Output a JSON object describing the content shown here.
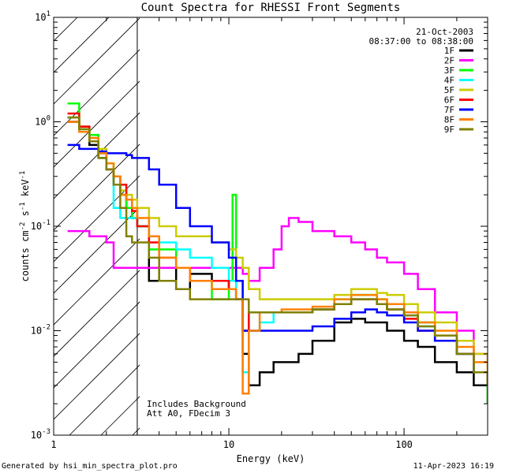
{
  "chart_data": {
    "type": "line",
    "title": "Count Spectra for RHESSI Front Segments",
    "xlabel": "Energy (keV)",
    "ylabel": "counts cm-2 s-1 keV-1",
    "x_scale": "log",
    "y_scale": "log",
    "xlim": [
      1,
      300
    ],
    "ylim": [
      0.001,
      10
    ],
    "x_ticks": [
      {
        "value": 1,
        "label": "1"
      },
      {
        "value": 10,
        "label": "10"
      },
      {
        "value": 100,
        "label": "100"
      }
    ],
    "y_ticks": [
      {
        "value": 10,
        "label": "10",
        "exp": "1"
      },
      {
        "value": 1,
        "label": "10",
        "exp": "0"
      },
      {
        "value": 0.1,
        "label": "10",
        "exp": "-1"
      },
      {
        "value": 0.01,
        "label": "10",
        "exp": "-2"
      },
      {
        "value": 0.001,
        "label": "10",
        "exp": "-3"
      }
    ],
    "date": "21-Oct-2003",
    "time_range": "08:37:00 to 08:38:00",
    "hatched_region_xmax": 3,
    "annotations": [
      "Includes Background",
      "Att A0, FDecim 3"
    ],
    "series": [
      {
        "name": "1F",
        "color": "#000000",
        "x": [
          1.2,
          1.4,
          1.6,
          1.8,
          2.0,
          2.2,
          2.4,
          2.6,
          2.8,
          3.0,
          3.5,
          4.0,
          5.0,
          6.0,
          8.0,
          10,
          11,
          12,
          13,
          15,
          18,
          20,
          25,
          30,
          40,
          50,
          60,
          70,
          80,
          100,
          120,
          150,
          200,
          250,
          300
        ],
        "y": [
          1.0,
          0.9,
          0.6,
          0.45,
          0.35,
          0.25,
          0.2,
          0.15,
          0.12,
          0.1,
          0.03,
          0.04,
          0.025,
          0.035,
          0.03,
          0.025,
          0.02,
          0.006,
          0.003,
          0.004,
          0.005,
          0.005,
          0.006,
          0.008,
          0.012,
          0.013,
          0.012,
          0.012,
          0.01,
          0.008,
          0.007,
          0.005,
          0.004,
          0.003,
          0.002
        ]
      },
      {
        "name": "2F",
        "color": "#ff00ff",
        "x": [
          1.2,
          1.4,
          1.6,
          1.8,
          2.0,
          2.2,
          2.4,
          2.6,
          2.8,
          3.0,
          3.5,
          4.0,
          5.0,
          6.0,
          8.0,
          10,
          11,
          12,
          13,
          15,
          18,
          20,
          22,
          25,
          30,
          40,
          50,
          60,
          70,
          80,
          100,
          120,
          150,
          200,
          250,
          300
        ],
        "y": [
          0.09,
          0.09,
          0.08,
          0.08,
          0.07,
          0.04,
          0.04,
          0.04,
          0.04,
          0.04,
          0.04,
          0.04,
          0.04,
          0.04,
          0.04,
          0.04,
          0.04,
          0.035,
          0.03,
          0.04,
          0.06,
          0.1,
          0.12,
          0.11,
          0.09,
          0.08,
          0.07,
          0.06,
          0.05,
          0.045,
          0.035,
          0.025,
          0.015,
          0.01,
          0.006,
          0.005
        ]
      },
      {
        "name": "3F",
        "color": "#00ff00",
        "x": [
          1.2,
          1.4,
          1.6,
          1.8,
          2.0,
          2.2,
          2.4,
          2.6,
          2.8,
          3.0,
          3.5,
          4.0,
          5.0,
          6.0,
          8.0,
          10,
          10.5,
          11,
          12,
          13,
          15,
          18,
          20,
          25,
          30,
          40,
          50,
          60,
          70,
          80,
          100,
          120,
          150,
          200,
          250,
          300
        ],
        "y": [
          1.5,
          0.85,
          0.75,
          0.5,
          0.4,
          0.3,
          0.2,
          0.15,
          0.12,
          0.1,
          0.06,
          0.06,
          0.04,
          0.03,
          0.02,
          0.03,
          0.2,
          0.03,
          0.01,
          0.015,
          0.015,
          0.015,
          0.015,
          0.015,
          0.016,
          0.02,
          0.022,
          0.022,
          0.02,
          0.018,
          0.015,
          0.012,
          0.008,
          0.006,
          0.004,
          0.002
        ]
      },
      {
        "name": "4F",
        "color": "#00ffff",
        "x": [
          1.2,
          1.4,
          1.6,
          1.8,
          2.0,
          2.2,
          2.4,
          2.6,
          2.8,
          3.0,
          3.5,
          4.0,
          5.0,
          6.0,
          8.0,
          10,
          11,
          12,
          13,
          15,
          18,
          20,
          25,
          30,
          40,
          50,
          60,
          70,
          80,
          100,
          120,
          150,
          200,
          250,
          300
        ],
        "y": [
          1.1,
          0.85,
          0.65,
          0.5,
          0.4,
          0.15,
          0.12,
          0.12,
          0.12,
          0.1,
          0.08,
          0.07,
          0.06,
          0.05,
          0.04,
          0.03,
          0.02,
          0.004,
          0.01,
          0.012,
          0.015,
          0.015,
          0.015,
          0.016,
          0.018,
          0.02,
          0.02,
          0.018,
          0.016,
          0.014,
          0.011,
          0.008,
          0.006,
          0.004,
          0.003
        ]
      },
      {
        "name": "5F",
        "color": "#cccc00",
        "x": [
          1.2,
          1.4,
          1.6,
          1.8,
          2.0,
          2.2,
          2.4,
          2.6,
          2.8,
          3.0,
          3.5,
          4.0,
          5.0,
          6.0,
          8.0,
          10,
          11,
          12,
          13,
          15,
          18,
          20,
          25,
          30,
          40,
          50,
          60,
          70,
          80,
          100,
          120,
          150,
          200,
          250,
          300
        ],
        "y": [
          1.1,
          0.9,
          0.7,
          0.55,
          0.4,
          0.3,
          0.22,
          0.2,
          0.18,
          0.15,
          0.12,
          0.1,
          0.08,
          0.08,
          0.07,
          0.06,
          0.05,
          0.04,
          0.025,
          0.02,
          0.02,
          0.02,
          0.02,
          0.02,
          0.022,
          0.025,
          0.025,
          0.023,
          0.022,
          0.018,
          0.015,
          0.012,
          0.008,
          0.006,
          0.004
        ]
      },
      {
        "name": "6F",
        "color": "#ff0000",
        "x": [
          1.2,
          1.4,
          1.6,
          1.8,
          2.0,
          2.2,
          2.4,
          2.6,
          2.8,
          3.0,
          3.5,
          4.0,
          5.0,
          6.0,
          8.0,
          10,
          11,
          12,
          13,
          15,
          18,
          20,
          25,
          30,
          40,
          50,
          60,
          70,
          80,
          100,
          120,
          150,
          200,
          250,
          300
        ],
        "y": [
          1.2,
          0.9,
          0.65,
          0.5,
          0.35,
          0.3,
          0.25,
          0.18,
          0.14,
          0.1,
          0.07,
          0.05,
          0.04,
          0.03,
          0.03,
          0.025,
          0.02,
          0.01,
          0.015,
          0.015,
          0.015,
          0.015,
          0.015,
          0.016,
          0.018,
          0.02,
          0.02,
          0.018,
          0.016,
          0.013,
          0.01,
          0.008,
          0.006,
          0.004,
          0.003
        ]
      },
      {
        "name": "7F",
        "color": "#0000ff",
        "x": [
          1.2,
          1.4,
          1.6,
          1.8,
          2.0,
          2.2,
          2.4,
          2.6,
          2.8,
          3.0,
          3.5,
          4.0,
          5.0,
          6.0,
          8.0,
          10,
          11,
          12,
          13,
          15,
          18,
          20,
          25,
          30,
          40,
          50,
          60,
          70,
          80,
          100,
          120,
          150,
          200,
          250,
          300
        ],
        "y": [
          0.6,
          0.55,
          0.55,
          0.52,
          0.5,
          0.5,
          0.5,
          0.48,
          0.45,
          0.45,
          0.35,
          0.25,
          0.15,
          0.1,
          0.07,
          0.05,
          0.03,
          0.01,
          0.01,
          0.01,
          0.01,
          0.01,
          0.01,
          0.011,
          0.013,
          0.015,
          0.016,
          0.015,
          0.014,
          0.012,
          0.01,
          0.008,
          0.006,
          0.004,
          0.003
        ]
      },
      {
        "name": "8F",
        "color": "#ff8000",
        "x": [
          1.2,
          1.4,
          1.6,
          1.8,
          2.0,
          2.2,
          2.4,
          2.6,
          2.8,
          3.0,
          3.5,
          4.0,
          5.0,
          6.0,
          8.0,
          10,
          11,
          12,
          13,
          15,
          18,
          20,
          25,
          30,
          40,
          50,
          60,
          70,
          80,
          100,
          120,
          150,
          200,
          250,
          300
        ],
        "y": [
          1.0,
          0.8,
          0.7,
          0.5,
          0.4,
          0.3,
          0.2,
          0.18,
          0.15,
          0.12,
          0.08,
          0.05,
          0.04,
          0.03,
          0.025,
          0.025,
          0.02,
          0.0025,
          0.01,
          0.015,
          0.015,
          0.016,
          0.016,
          0.017,
          0.02,
          0.022,
          0.022,
          0.02,
          0.018,
          0.015,
          0.012,
          0.01,
          0.007,
          0.005,
          0.003
        ]
      },
      {
        "name": "9F",
        "color": "#808000",
        "x": [
          1.2,
          1.4,
          1.6,
          1.8,
          2.0,
          2.2,
          2.4,
          2.6,
          2.8,
          3.0,
          3.5,
          4.0,
          5.0,
          6.0,
          8.0,
          10,
          11,
          12,
          13,
          15,
          18,
          20,
          25,
          30,
          40,
          50,
          60,
          70,
          80,
          100,
          120,
          150,
          200,
          250,
          300
        ],
        "y": [
          1.1,
          0.85,
          0.65,
          0.45,
          0.35,
          0.25,
          0.15,
          0.08,
          0.07,
          0.07,
          0.05,
          0.03,
          0.025,
          0.02,
          0.02,
          0.02,
          0.02,
          0.02,
          0.015,
          0.015,
          0.015,
          0.015,
          0.015,
          0.016,
          0.018,
          0.02,
          0.02,
          0.018,
          0.016,
          0.014,
          0.011,
          0.009,
          0.006,
          0.004,
          0.003
        ]
      }
    ]
  },
  "footer": {
    "generated_by": "Generated by hsi_min_spectra_plot.pro",
    "timestamp": "11-Apr-2023 16:19"
  }
}
